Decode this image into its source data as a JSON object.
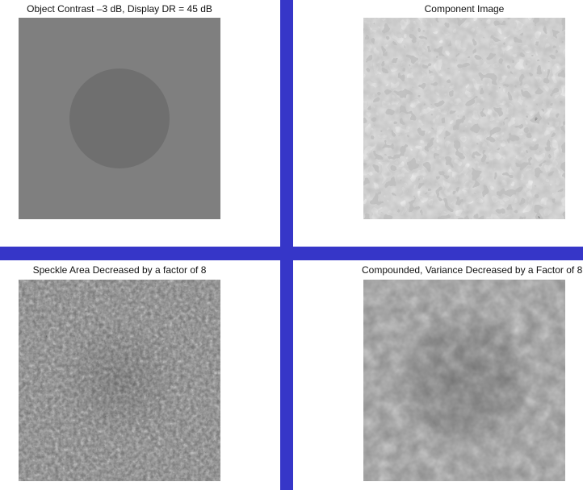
{
  "colors": {
    "divider": "#3636c8",
    "background": "#ffffff",
    "phantom_background": "#7f7f7f",
    "phantom_lesion": "#6f6f6f"
  },
  "panels": {
    "top_left": {
      "title": "Object Contrast –3 dB, Display DR = 45 dB"
    },
    "top_right": {
      "title": "Component Image"
    },
    "bottom_left": {
      "title": "Speckle Area Decreased by a factor of 8"
    },
    "bottom_right": {
      "title": "Compounded, Variance Decreased by a Factor of 8"
    }
  }
}
